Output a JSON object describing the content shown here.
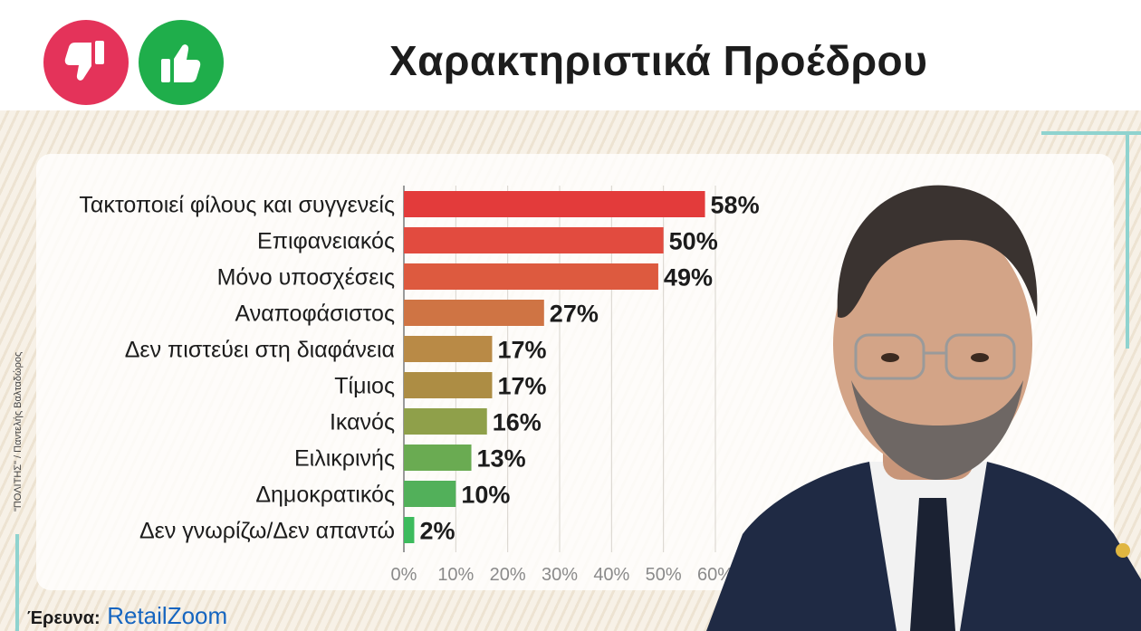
{
  "header": {
    "title": "Χαρακτηριστικά Προέδρου",
    "icons": [
      "thumbs-down-icon",
      "thumbs-up-icon"
    ]
  },
  "credit": "\"ΠΟΛΙΤΗΣ\" / Παντελής Βαλταδώρος",
  "source": {
    "prefix": "Έρευνα:",
    "brand_a": "Retail",
    "brand_b": "Zoom"
  },
  "colors": {
    "thumbs_down": "#e4335a",
    "thumbs_up": "#1fae4b",
    "brand": "#1565c0"
  },
  "chart_data": {
    "type": "bar",
    "orientation": "horizontal",
    "title": "Χαρακτηριστικά Προέδρου",
    "categories": [
      "Τακτοποιεί φίλους και συγγενείς",
      "Επιφανειακός",
      "Μόνο υποσχέσεις",
      "Αναποφάσιστος",
      "Δεν πιστεύει στη διαφάνεια",
      "Τίμιος",
      "Ικανός",
      "Ειλικρινής",
      "Δημοκρατικός",
      "Δεν γνωρίζω/Δεν απαντώ"
    ],
    "values": [
      58,
      50,
      49,
      27,
      17,
      17,
      16,
      13,
      10,
      2
    ],
    "value_labels": [
      "58%",
      "50%",
      "49%",
      "27%",
      "17%",
      "17%",
      "16%",
      "13%",
      "10%",
      "2%"
    ],
    "bar_colors": [
      "#e33b3b",
      "#e24b3f",
      "#dd5a3f",
      "#cf7444",
      "#b98a46",
      "#ad8d44",
      "#8fa04a",
      "#6aab52",
      "#52b05a",
      "#3dbb5d"
    ],
    "xticks": [
      "0%",
      "10%",
      "20%",
      "30%",
      "40%",
      "50%",
      "60%"
    ],
    "xlim": [
      0,
      60
    ],
    "grid": true
  }
}
